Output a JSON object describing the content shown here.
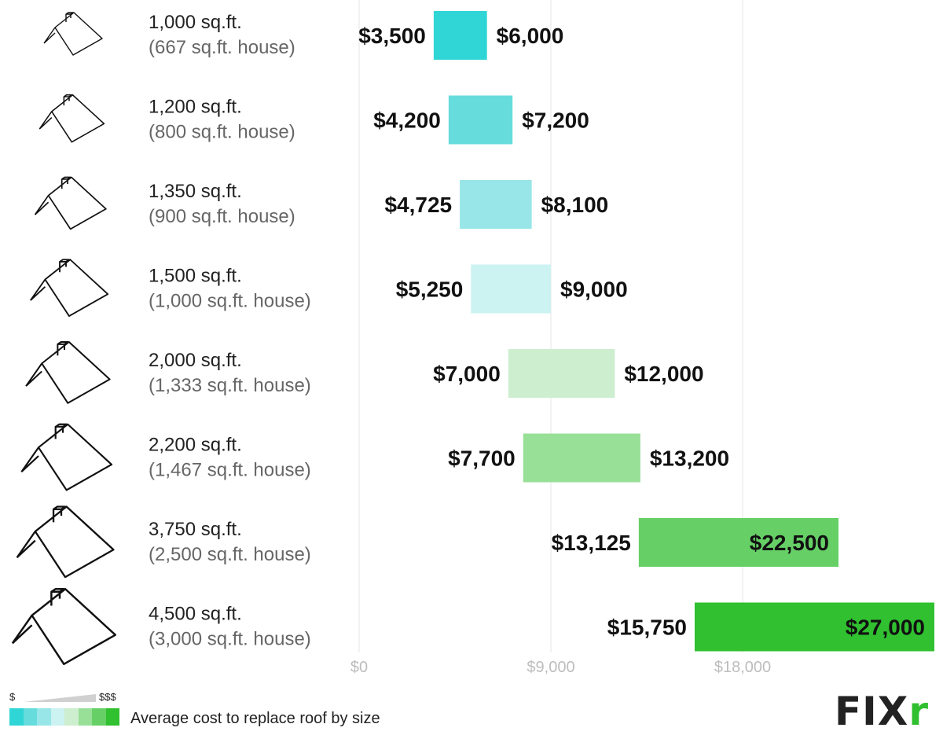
{
  "chart_data": {
    "type": "bar",
    "title": "Average cost to replace roof by size",
    "categories": [
      {
        "roof": "1,000 sq.ft.",
        "house": "(667 sq.ft. house)"
      },
      {
        "roof": "1,200 sq.ft.",
        "house": "(800 sq.ft. house)"
      },
      {
        "roof": "1,350 sq.ft.",
        "house": "(900 sq.ft. house)"
      },
      {
        "roof": "1,500 sq.ft.",
        "house": "(1,000 sq.ft. house)"
      },
      {
        "roof": "2,000 sq.ft.",
        "house": "(1,333 sq.ft. house)"
      },
      {
        "roof": "2,200 sq.ft.",
        "house": "(1,467 sq.ft. house)"
      },
      {
        "roof": "3,750 sq.ft.",
        "house": "(2,500 sq.ft. house)"
      },
      {
        "roof": "4,500 sq.ft.",
        "house": "(3,000 sq.ft. house)"
      }
    ],
    "low": [
      3500,
      4200,
      4725,
      5250,
      7000,
      7700,
      13125,
      15750
    ],
    "high": [
      6000,
      7200,
      8100,
      9000,
      12000,
      13200,
      22500,
      27000
    ],
    "low_labels": [
      "$3,500",
      "$4,200",
      "$4,725",
      "$5,250",
      "$7,000",
      "$7,700",
      "$13,125",
      "$15,750"
    ],
    "high_labels": [
      "$6,000",
      "$7,200",
      "$8,100",
      "$9,000",
      "$12,000",
      "$13,200",
      "$22,500",
      "$27,000"
    ],
    "colors": [
      "#30d5d5",
      "#66dcdc",
      "#98e6e8",
      "#ccf2f2",
      "#cdeecf",
      "#98df98",
      "#66d066",
      "#30c030"
    ],
    "x_ticks": [
      0,
      9000,
      18000
    ],
    "x_tick_labels": [
      "$0",
      "$9,000",
      "$18,000"
    ],
    "xlim": [
      0,
      27000
    ],
    "grid": true
  },
  "legend": {
    "text": "Average cost to replace roof by size",
    "low_label": "$",
    "high_label": "$$$",
    "swatches": [
      "#30d5d5",
      "#66dcdc",
      "#98e6e8",
      "#ccf2f2",
      "#cdeecf",
      "#98df98",
      "#66d066",
      "#30c030"
    ]
  },
  "logo": {
    "main": "FIX",
    "accent": "r"
  }
}
